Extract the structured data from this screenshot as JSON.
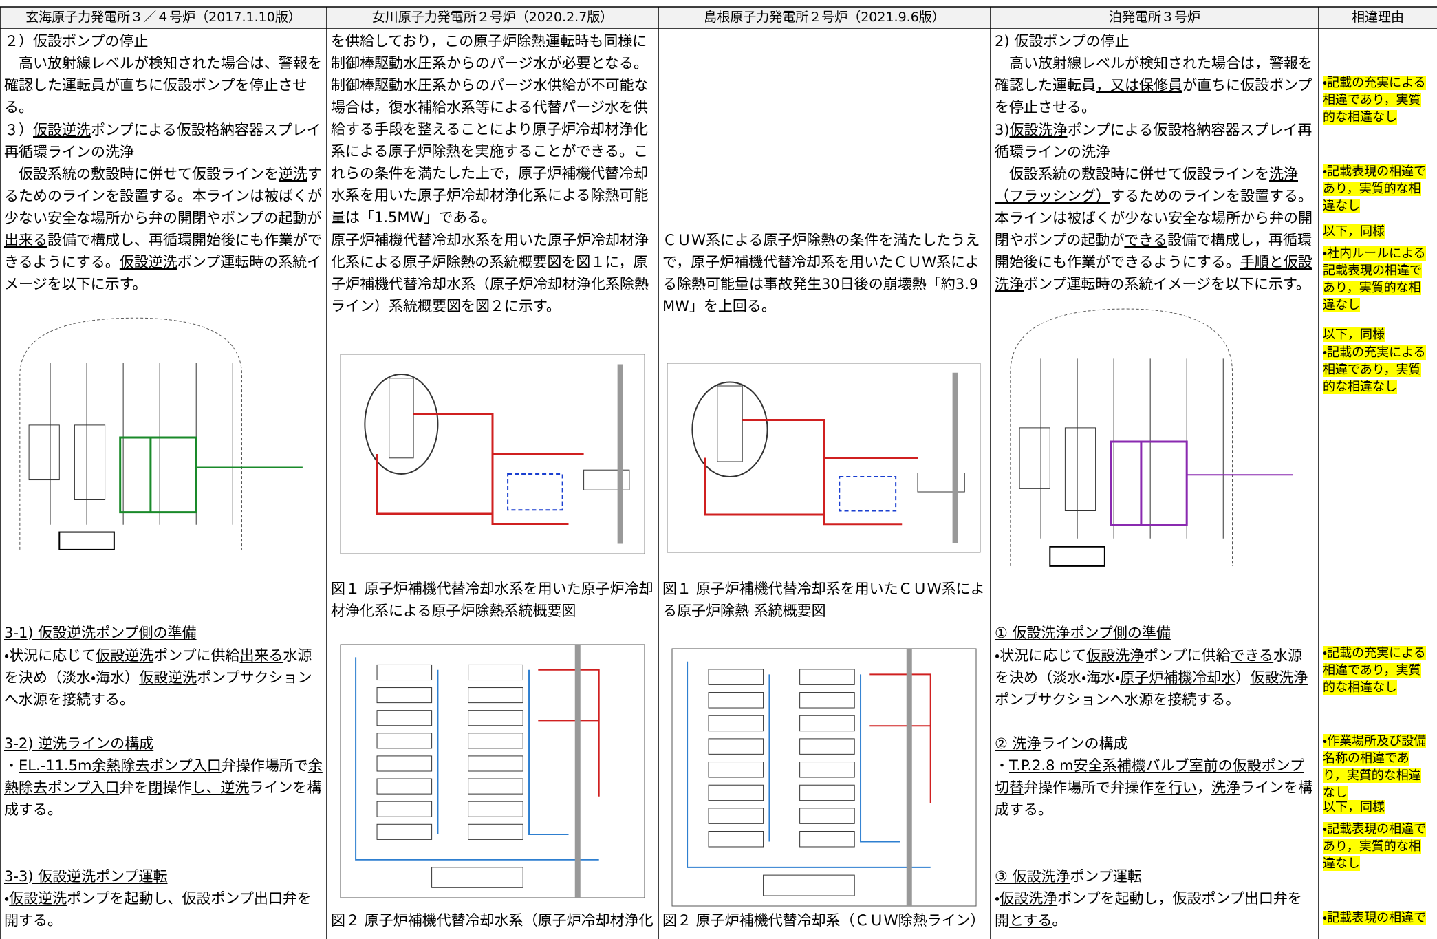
{
  "table": {
    "headers": [
      "玄海原子力発電所３／４号炉（2017.1.10版）",
      "女川原子力発電所２号炉（2020.2.7版）",
      "島根原子力発電所２号炉（2021.9.6版）",
      "泊発電所３号炉",
      "相違理由"
    ],
    "columns": [
      {
        "blocks": [
          {
            "runs": [
              "２）仮設ポンプの停止"
            ]
          },
          {
            "runs": [
              "　高い放射線レベルが検知された場合は、警報を確認した運転員が直ちに仮設ポンプを停止させる。"
            ]
          },
          {
            "runs": [
              "３）",
              {
                "u": "仮設逆洗"
              },
              "ポンプによる仮設格納容器スプレイ再循環ラインの洗浄"
            ]
          },
          {
            "runs": [
              "　仮設系統の敷設時に併せて仮設ラインを",
              {
                "u": "逆洗"
              },
              "するためのラインを設置する。本ラインは被ばくが少ない安全な場所から弁の開閉やポンプの起動が",
              {
                "u": "出来る"
              },
              "設備で構成し、再循環開始後にも作業ができるようにする。",
              {
                "u": "仮設逆洗"
              },
              "ポンプ運転時の系統イメージを以下に示す。"
            ]
          },
          {
            "runs": [
              {
                "u": "3-1) 仮設逆洗ポンプ側の準備"
              }
            ]
          },
          {
            "runs": [
              "・状況に応じて",
              {
                "u": "仮設逆洗"
              },
              "ポンプに供給",
              {
                "u": "出来る"
              },
              "水源を決め（淡水・海水）",
              {
                "u": "仮設逆洗"
              },
              "ポンプサクションへ水源を接続する。"
            ]
          },
          {
            "runs": [
              {
                "u": "3-2) 逆洗ラインの構成"
              }
            ]
          },
          {
            "runs": [
              "・",
              {
                "u": "EL.-11.5m余熱除去ポンプ入口"
              },
              "弁操作場所で",
              {
                "u": "余熱除去ポンプ入口"
              },
              "弁を",
              {
                "u": "閉"
              },
              "操作",
              {
                "u": "し、逆洗"
              },
              "ラインを構成する。"
            ]
          },
          {
            "runs": [
              {
                "u": "3-3) 仮設逆洗ポンプ運転"
              }
            ]
          },
          {
            "runs": [
              "・",
              {
                "u": "仮設逆洗"
              },
              "ポンプを起動し、仮設ポンプ出口弁を開する。"
            ]
          }
        ]
      },
      {
        "blocks": [
          {
            "runs": [
              "を供給しており，この原子炉除熱運転時も同様に制御棒駆動水圧系からのパージ水が必要となる。制御棒駆動水圧系からのパージ水供給が不可能な場合は，復水補給水系等による代替パージ水を供給する手段を整えることにより原子炉冷却材浄化系による原子炉除熱を実施することができる。これらの条件を満たした上で，原子炉補機代替冷却水系を用いた原子炉冷却材浄化系による除熱可能量は「1.5MW」である。"
            ]
          },
          {
            "runs": [
              "原子炉補機代替冷却水系を用いた原子炉冷却材浄化系による原子炉除熱の系統概要図を図１に，原子炉補機代替冷却水系（原子炉冷却材浄化系除熱ライン）系統概要図を図２に示す。"
            ]
          },
          {
            "runs": [
              "図１ 原子炉補機代替冷却水系を用いた原子炉冷却材浄化系による原子炉除熱系統概要図"
            ]
          },
          {
            "runs": [
              "図２ 原子炉補機代替冷却水系（原子炉冷却材浄化"
            ]
          }
        ]
      },
      {
        "blocks": [
          {
            "runs": [
              "ＣＵＷ系による原子炉除熱の条件を満たしたうえで，原子炉補機代替冷却系を用いたＣＵＷ系による除熱可能量は事故発生30日後の崩壊熱「約3.9MW」を上回る。"
            ]
          },
          {
            "runs": [
              "図１ 原子炉補機代替冷却系を用いたＣＵＷ系による原子炉除熱 系統概要図"
            ]
          },
          {
            "runs": [
              "図２ 原子炉補機代替冷却系（ＣＵＷ除熱ライン）"
            ]
          }
        ]
      },
      {
        "blocks": [
          {
            "runs": [
              "2) 仮設ポンプの停止"
            ]
          },
          {
            "runs": [
              "　高い放射線レベルが検知された場合は，警報を確認した運転員",
              {
                "u": "，又は保修員"
              },
              "が直ちに仮設ポンプを停止させる。"
            ]
          },
          {
            "runs": [
              "3)",
              {
                "u": "仮設洗浄"
              },
              "ポンプによる仮設格納容器スプレイ再循環ラインの洗浄"
            ]
          },
          {
            "runs": [
              "　仮設系統の敷設時に併せて仮設ラインを",
              {
                "u": "洗浄（フラッシング）"
              },
              "するためのラインを設置する。本ラインは被ばくが少ない安全な場所から弁の開閉やポンプの起動が",
              {
                "u": "できる"
              },
              "設備で構成し，再循環開始後にも作業ができるようにする。",
              {
                "u": "手順と仮設洗浄"
              },
              "ポンプ運転時の系統イメージを以下に示す。"
            ]
          },
          {
            "runs": [
              {
                "u": "① 仮設洗浄ポンプ側の準備"
              }
            ]
          },
          {
            "runs": [
              "・状況に応じて",
              {
                "u": "仮設洗浄"
              },
              "ポンプに供給",
              {
                "u": "できる"
              },
              "水源を決め（淡水・海水・",
              {
                "u": "原子炉補機冷却水"
              },
              "）",
              {
                "u": "仮設洗浄"
              },
              "ポンプサクションへ水源を接続する。"
            ]
          },
          {
            "runs": [
              {
                "u": "② 洗浄"
              },
              "ラインの構成"
            ]
          },
          {
            "runs": [
              "・",
              {
                "u": "T.P.2.8 m安全系補機バルブ室前の仮設ポンプ切替"
              },
              "弁操作場所で弁操作",
              {
                "u": "を行い"
              },
              "，",
              {
                "u": "洗浄"
              },
              "ラインを構成する。"
            ]
          },
          {
            "runs": [
              {
                "u": "③ 仮設洗浄"
              },
              "ポンプ運転"
            ]
          },
          {
            "runs": [
              "・",
              {
                "u": "仮設洗浄"
              },
              "ポンプを起動し，仮設ポンプ出口弁を開",
              {
                "u": "とする"
              },
              "。"
            ]
          }
        ]
      },
      {
        "highlight": true,
        "blocks": [
          {
            "runs": [
              "・記載の充実による相違であり，実質的な相違なし"
            ]
          },
          {
            "runs": [
              "・記載表現の相違であり，実質的な相違なし"
            ]
          },
          {
            "runs": [
              "以下，同様"
            ]
          },
          {
            "runs": [
              "・社内ルールによる記載表現の相違であり，実質的な相違なし"
            ]
          },
          {
            "runs": [
              "以下，同様"
            ]
          },
          {
            "runs": [
              "・記載の充実による相違であり，実質的な相違なし"
            ]
          },
          {
            "runs": [
              "・記載の充実による相違であり，実質的な相違なし"
            ]
          },
          {
            "runs": [
              "・作業場所及び設備名称の相違であり，実質的な相違なし"
            ]
          },
          {
            "runs": [
              "以下，同様"
            ]
          },
          {
            "runs": [
              "・記載表現の相違であり，実質的な相違なし"
            ]
          },
          {
            "runs": [
              "・記載表現の相違で"
            ]
          }
        ]
      }
    ]
  }
}
